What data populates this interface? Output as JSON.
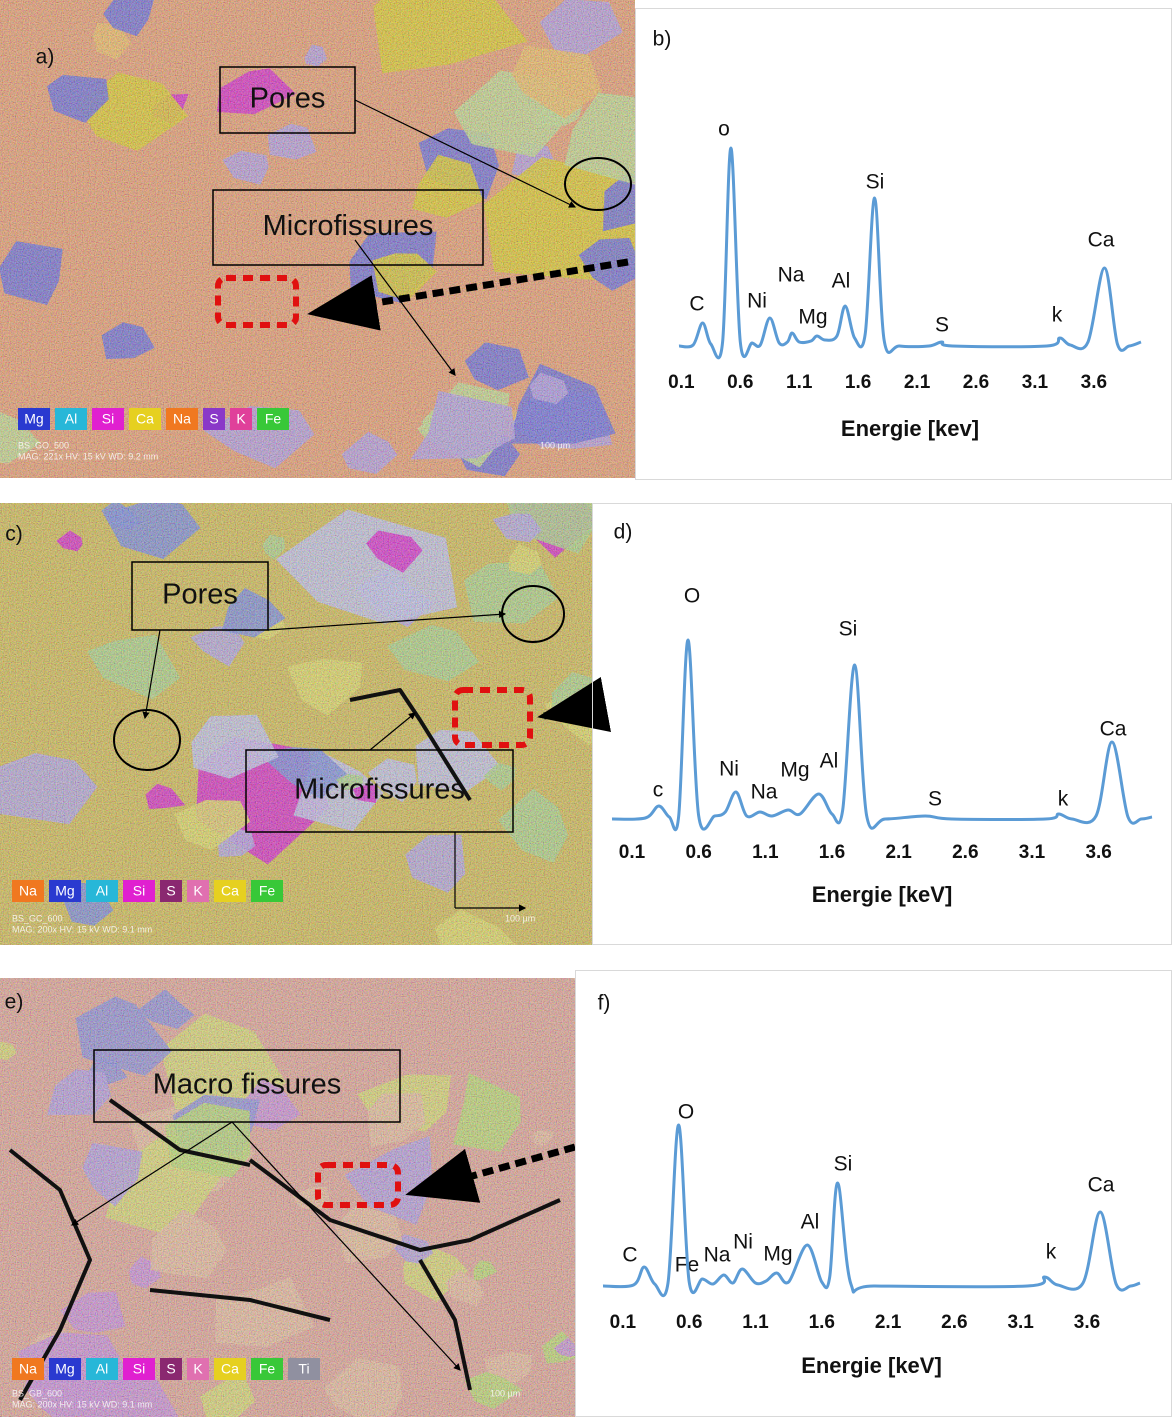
{
  "images": [
    {
      "label": "a)",
      "boxes": [
        "Pores",
        "Microfissures"
      ],
      "legend": [
        {
          "text": "Mg",
          "color": "#2a3ad0"
        },
        {
          "text": "Al",
          "color": "#27b7d8"
        },
        {
          "text": "Si",
          "color": "#e020d0"
        },
        {
          "text": "Ca",
          "color": "#e6d020"
        },
        {
          "text": "Na",
          "color": "#f07820"
        },
        {
          "text": "S",
          "color": "#8a38c8"
        },
        {
          "text": "K",
          "color": "#e0409a"
        },
        {
          "text": "Fe",
          "color": "#38c838"
        }
      ],
      "info": [
        "BS_GO_500",
        "MAG: 221x   HV: 15 kV   WD: 9.2 mm"
      ],
      "scale": "100 µm"
    },
    {
      "label": "c)",
      "boxes": [
        "Pores",
        "Microfissures"
      ],
      "legend": [
        {
          "text": "Na",
          "color": "#f07820"
        },
        {
          "text": "Mg",
          "color": "#2a3ad0"
        },
        {
          "text": "Al",
          "color": "#27b7d8"
        },
        {
          "text": "Si",
          "color": "#e020d0"
        },
        {
          "text": "S",
          "color": "#8a2870"
        },
        {
          "text": "K",
          "color": "#e070b0"
        },
        {
          "text": "Ca",
          "color": "#e6d020"
        },
        {
          "text": "Fe",
          "color": "#38c838"
        }
      ],
      "info": [
        "BS_GC_600",
        "MAG: 200x   HV: 15 kV   WD: 9.1 mm"
      ],
      "scale": "100 µm"
    },
    {
      "label": "e)",
      "boxes": [
        "Macro fissures"
      ],
      "legend": [
        {
          "text": "Na",
          "color": "#f07820"
        },
        {
          "text": "Mg",
          "color": "#2a3ad0"
        },
        {
          "text": "Al",
          "color": "#27b7d8"
        },
        {
          "text": "Si",
          "color": "#e020d0"
        },
        {
          "text": "S",
          "color": "#8a2870"
        },
        {
          "text": "K",
          "color": "#e070b0"
        },
        {
          "text": "Ca",
          "color": "#e6d020"
        },
        {
          "text": "Fe",
          "color": "#38c838"
        },
        {
          "text": "Ti",
          "color": "#9090a0"
        }
      ],
      "info": [
        "BS_GB_600",
        "MAG: 200x   HV: 15 kV   WD: 9.1 mm"
      ],
      "scale": "100 µm"
    }
  ],
  "chart_data": [
    {
      "type": "line",
      "label": "b)",
      "xlabel": "Energie [kev]",
      "xlim": [
        0.08,
        4.0
      ],
      "xticks": [
        0.1,
        0.6,
        1.1,
        1.6,
        2.1,
        2.6,
        3.1,
        3.6
      ],
      "annotations": [
        "o",
        "C",
        "Ni",
        "Na",
        "Mg",
        "Al",
        "Si",
        "S",
        "k",
        "Ca"
      ],
      "series": [
        {
          "color": "#5b9bd5",
          "x": [
            0.08,
            0.2,
            0.28,
            0.35,
            0.45,
            0.52,
            0.6,
            0.7,
            0.77,
            0.85,
            0.93,
            1.0,
            1.04,
            1.1,
            1.2,
            1.25,
            1.32,
            1.42,
            1.49,
            1.57,
            1.66,
            1.74,
            1.82,
            1.95,
            2.2,
            2.31,
            2.4,
            3.2,
            3.31,
            3.4,
            3.55,
            3.69,
            3.8,
            3.9,
            4.0
          ],
          "values": [
            2,
            3,
            25,
            4,
            6,
            200,
            6,
            5,
            3,
            30,
            5,
            6,
            15,
            6,
            7,
            12,
            8,
            12,
            42,
            10,
            14,
            150,
            8,
            2,
            2,
            6,
            2,
            2,
            10,
            3,
            6,
            80,
            4,
            2,
            6
          ]
        }
      ]
    },
    {
      "type": "line",
      "label": "d)",
      "xlabel": "Energie [keV]",
      "xlim": [
        -0.05,
        4.0
      ],
      "xticks": [
        0.1,
        0.6,
        1.1,
        1.6,
        2.1,
        2.6,
        3.1,
        3.6
      ],
      "annotations": [
        "O",
        "c",
        "Ni",
        "Na",
        "Mg",
        "Al",
        "Si",
        "S",
        "k",
        "Ca"
      ],
      "series": [
        {
          "color": "#5b9bd5",
          "x": [
            -0.05,
            0.2,
            0.3,
            0.38,
            0.45,
            0.52,
            0.6,
            0.72,
            0.8,
            0.88,
            0.96,
            1.06,
            1.15,
            1.27,
            1.36,
            1.5,
            1.6,
            1.68,
            1.77,
            1.86,
            2.0,
            2.3,
            2.5,
            3.2,
            3.3,
            3.4,
            3.58,
            3.7,
            3.82,
            3.92,
            4.0
          ],
          "values": [
            1,
            2,
            14,
            3,
            4,
            180,
            4,
            4,
            8,
            28,
            4,
            8,
            4,
            10,
            6,
            26,
            6,
            10,
            155,
            4,
            1,
            4,
            1,
            1,
            6,
            1,
            4,
            78,
            3,
            1,
            3
          ]
        }
      ]
    },
    {
      "type": "line",
      "label": "f)",
      "xlabel": "Energie [keV]",
      "xlim": [
        -0.05,
        4.0
      ],
      "xticks": [
        0.1,
        0.6,
        1.1,
        1.6,
        2.1,
        2.6,
        3.1,
        3.6
      ],
      "annotations": [
        "O",
        "C",
        "Fe",
        "Na",
        "Ni",
        "Mg",
        "Al",
        "Si",
        "k",
        "Ca"
      ],
      "series": [
        {
          "color": "#5b9bd5",
          "x": [
            -0.05,
            0.18,
            0.26,
            0.34,
            0.44,
            0.52,
            0.6,
            0.7,
            0.78,
            0.86,
            0.93,
            1.0,
            1.1,
            1.18,
            1.26,
            1.35,
            1.49,
            1.6,
            1.66,
            1.72,
            1.82,
            2.0,
            3.15,
            3.28,
            3.38,
            3.57,
            3.7,
            3.82,
            3.93,
            4.0
          ],
          "values": [
            1,
            2,
            20,
            3,
            4,
            162,
            5,
            8,
            3,
            12,
            4,
            18,
            4,
            6,
            14,
            5,
            42,
            5,
            10,
            104,
            3,
            1,
            1,
            10,
            2,
            4,
            75,
            3,
            1,
            4
          ]
        }
      ]
    }
  ]
}
